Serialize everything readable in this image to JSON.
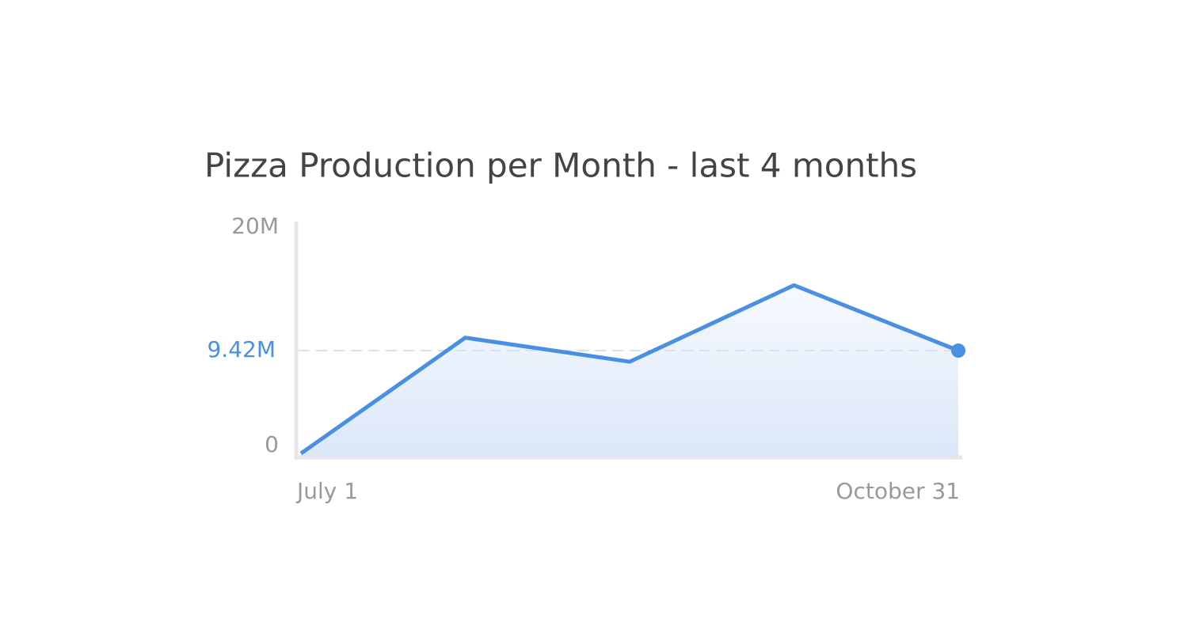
{
  "chart_data": {
    "type": "line",
    "title": "Pizza Production per Month - last 4 months",
    "categories": [
      "July 1",
      null,
      null,
      null,
      "October 31"
    ],
    "values": [
      0,
      10600000,
      8400000,
      15400000,
      9420000
    ],
    "value_labels": [
      null,
      null,
      null,
      null,
      "9.42M"
    ],
    "color": "#4a90e2",
    "ylim": [
      0,
      20000000
    ],
    "yticks": [
      0,
      {
        "value": 20000000,
        "label": "20M"
      }
    ],
    "grid": false
  }
}
